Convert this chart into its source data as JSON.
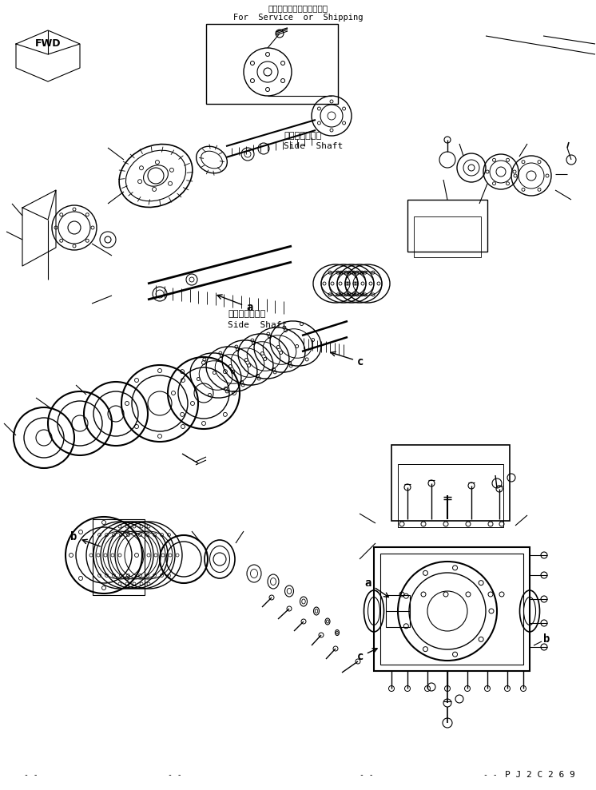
{
  "title_jp": "サービスまたは運搬部品用",
  "title_en": "For  Service  or  Shipping",
  "label_side_shaft_jp1": "サイドシャフト",
  "label_side_shaft_en1": "Side  Shaft",
  "label_side_shaft_jp2": "サイドシャフト",
  "label_side_shaft_en2": "Side  Shaft",
  "label_fwd": "FWD",
  "part_number": "P J 2 C 2 6 9",
  "bg_color": "#ffffff",
  "line_color": "#000000",
  "fig_width": 7.46,
  "fig_height": 9.89,
  "dpi": 100
}
